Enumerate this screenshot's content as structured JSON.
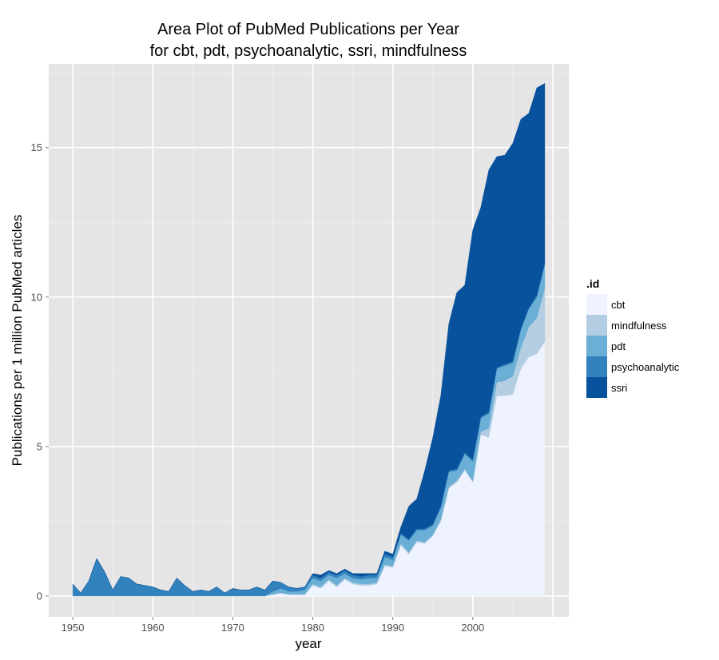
{
  "chart_data": {
    "type": "area",
    "stacked": true,
    "title": [
      "Area Plot of PubMed Publications per Year",
      "for cbt, pdt, psychoanalytic, ssri, mindfulness"
    ],
    "xlabel": "year",
    "ylabel": "Publications per 1 million PubMed articles",
    "xlim": [
      1947,
      2012
    ],
    "ylim": [
      -0.7,
      17.8
    ],
    "x_ticks": [
      1950,
      1960,
      1970,
      1980,
      1990,
      2000
    ],
    "y_ticks": [
      0,
      5,
      10,
      15
    ],
    "grid": true,
    "legend": {
      "title": ".id",
      "position": "right"
    },
    "x": [
      1950,
      1951,
      1952,
      1953,
      1954,
      1955,
      1956,
      1957,
      1958,
      1959,
      1960,
      1961,
      1962,
      1963,
      1964,
      1965,
      1966,
      1967,
      1968,
      1969,
      1970,
      1971,
      1972,
      1973,
      1974,
      1975,
      1976,
      1977,
      1978,
      1979,
      1980,
      1981,
      1982,
      1983,
      1984,
      1985,
      1986,
      1987,
      1988,
      1989,
      1990,
      1991,
      1992,
      1993,
      1994,
      1995,
      1996,
      1997,
      1998,
      1999,
      2000,
      2001,
      2002,
      2003,
      2004,
      2005,
      2006,
      2007,
      2008,
      2009
    ],
    "series": [
      {
        "name": "cbt",
        "color": "#eff3ff",
        "values": [
          0,
          0,
          0,
          0,
          0,
          0,
          0,
          0,
          0,
          0,
          0,
          0,
          0,
          0,
          0,
          0,
          0,
          0,
          0,
          0,
          0,
          0,
          0,
          0,
          0,
          0.05,
          0.1,
          0.05,
          0.05,
          0.05,
          0.35,
          0.25,
          0.5,
          0.3,
          0.55,
          0.4,
          0.35,
          0.35,
          0.4,
          1.0,
          0.95,
          1.7,
          1.4,
          1.8,
          1.75,
          2.0,
          2.5,
          3.6,
          3.8,
          4.2,
          3.8,
          5.4,
          5.3,
          6.7,
          6.7,
          6.75,
          7.6,
          8.0,
          8.1,
          8.5
        ]
      },
      {
        "name": "mindfulness",
        "color": "#b3cde3",
        "values": [
          0,
          0,
          0,
          0,
          0,
          0,
          0,
          0,
          0,
          0,
          0,
          0,
          0,
          0,
          0,
          0,
          0,
          0,
          0,
          0,
          0,
          0,
          0,
          0,
          0,
          0,
          0,
          0,
          0,
          0,
          0.05,
          0.05,
          0.05,
          0.05,
          0.05,
          0.05,
          0.05,
          0.05,
          0.05,
          0.05,
          0.05,
          0.05,
          0.05,
          0.05,
          0.05,
          0.05,
          0.05,
          0.05,
          0.05,
          0.05,
          0.05,
          0.1,
          0.3,
          0.45,
          0.5,
          0.6,
          0.7,
          1.0,
          1.2,
          1.8
        ]
      },
      {
        "name": "pdt",
        "color": "#6baed6",
        "values": [
          0,
          0,
          0,
          0,
          0,
          0,
          0,
          0,
          0,
          0,
          0,
          0,
          0,
          0,
          0,
          0,
          0,
          0,
          0,
          0,
          0,
          0,
          0,
          0,
          0,
          0.1,
          0.15,
          0.1,
          0.1,
          0.15,
          0.2,
          0.2,
          0.15,
          0.25,
          0.15,
          0.15,
          0.15,
          0.2,
          0.15,
          0.25,
          0.2,
          0.3,
          0.4,
          0.35,
          0.4,
          0.3,
          0.4,
          0.5,
          0.35,
          0.5,
          0.65,
          0.45,
          0.5,
          0.45,
          0.5,
          0.45,
          0.6,
          0.6,
          0.7,
          0.8
        ]
      },
      {
        "name": "psychoanalytic",
        "color": "#3182bd",
        "values": [
          0.4,
          0.1,
          0.5,
          1.25,
          0.8,
          0.2,
          0.65,
          0.6,
          0.4,
          0.35,
          0.3,
          0.2,
          0.15,
          0.6,
          0.35,
          0.15,
          0.2,
          0.15,
          0.3,
          0.1,
          0.25,
          0.2,
          0.2,
          0.3,
          0.2,
          0.35,
          0.2,
          0.15,
          0.1,
          0.1,
          0.1,
          0.1,
          0.1,
          0.1,
          0.1,
          0.1,
          0.1,
          0.1,
          0.1,
          0.1,
          0.1,
          0.05,
          0.05,
          0.05,
          0.05,
          0.05,
          0.05,
          0.05,
          0.05,
          0.05,
          0.05,
          0.05,
          0.05,
          0.05,
          0.05,
          0.05,
          0.05,
          0.05,
          0.05,
          0.05
        ]
      },
      {
        "name": "ssri",
        "color": "#08519c",
        "values": [
          0,
          0,
          0,
          0,
          0,
          0,
          0,
          0,
          0,
          0,
          0,
          0,
          0,
          0,
          0,
          0,
          0,
          0,
          0,
          0,
          0,
          0,
          0,
          0,
          0,
          0,
          0,
          0,
          0,
          0,
          0.05,
          0.1,
          0.05,
          0.05,
          0.05,
          0.05,
          0.1,
          0.05,
          0.05,
          0.1,
          0.1,
          0.2,
          1.1,
          1.0,
          1.95,
          2.9,
          3.7,
          4.9,
          5.9,
          5.6,
          7.7,
          7.0,
          8.1,
          7.05,
          7.0,
          7.3,
          7.0,
          6.5,
          6.95,
          6.0
        ]
      }
    ]
  }
}
